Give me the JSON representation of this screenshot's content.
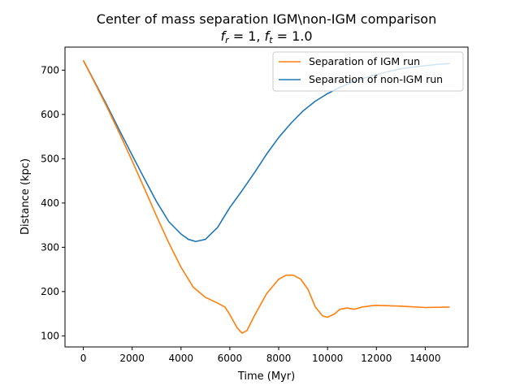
{
  "chart_data": {
    "type": "line",
    "title": "Center of mass separation IGM\\non-IGM comparison",
    "subtitle": {
      "fr_label": "f",
      "fr_sub": "r",
      "fr_value": " =  1, ",
      "ft_label": "f",
      "ft_sub": "t",
      "ft_value": " =  1.0"
    },
    "xlabel": "Time (Myr)",
    "ylabel": "Distance (kpc)",
    "xlim": [
      -750,
      15750
    ],
    "ylim": [
      75,
      752
    ],
    "xticks": [
      0,
      2000,
      4000,
      6000,
      8000,
      10000,
      12000,
      14000
    ],
    "yticks": [
      100,
      200,
      300,
      400,
      500,
      600,
      700
    ],
    "grid": false,
    "legend_position": "top-right",
    "series": [
      {
        "name": "Separation of IGM run",
        "color": "#ff7f0e",
        "x": [
          0,
          500,
          1000,
          1500,
          2000,
          2500,
          3000,
          3500,
          4000,
          4500,
          5000,
          5500,
          5800,
          6000,
          6300,
          6500,
          6700,
          7000,
          7500,
          8000,
          8300,
          8600,
          8900,
          9200,
          9500,
          9800,
          10000,
          10300,
          10500,
          10800,
          11100,
          11400,
          11800,
          12000,
          13000,
          14000,
          15000
        ],
        "y": [
          722,
          668,
          613,
          555,
          495,
          433,
          370,
          310,
          255,
          210,
          187,
          174,
          165,
          148,
          118,
          106,
          112,
          145,
          195,
          228,
          237,
          237,
          228,
          205,
          165,
          145,
          142,
          150,
          160,
          163,
          160,
          165,
          168,
          169,
          167,
          164,
          165
        ]
      },
      {
        "name": "Separation of non-IGM run",
        "color": "#1f77b4",
        "x": [
          0,
          500,
          1000,
          1500,
          2000,
          2500,
          3000,
          3500,
          4000,
          4300,
          4600,
          5000,
          5500,
          6000,
          6500,
          7000,
          7500,
          8000,
          8500,
          9000,
          9500,
          10000,
          10500,
          11000,
          11500,
          12000,
          12500,
          13000,
          13500,
          14000,
          14500,
          15000
        ],
        "y": [
          722,
          670,
          617,
          562,
          508,
          455,
          403,
          358,
          330,
          318,
          313,
          318,
          345,
          390,
          428,
          468,
          510,
          548,
          580,
          608,
          630,
          647,
          661,
          673,
          682,
          690,
          697,
          703,
          707,
          710,
          713,
          715
        ]
      }
    ]
  }
}
